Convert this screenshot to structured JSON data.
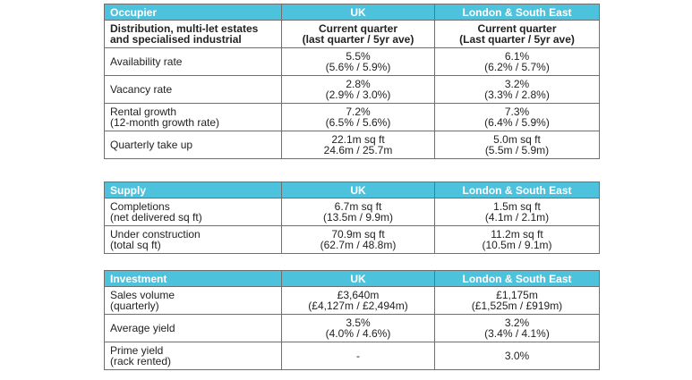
{
  "occupier": {
    "headers": [
      "Occupier",
      "UK",
      "London & South East"
    ],
    "subheader": {
      "label": [
        "Distribution, multi-let estates",
        "and specialised industrial"
      ],
      "uk": [
        "Current quarter",
        "(last quarter / 5yr ave)"
      ],
      "lse": [
        "Current quarter",
        "(Last quarter / 5yr ave)"
      ]
    },
    "rows": [
      {
        "label": [
          "Availability rate",
          ""
        ],
        "uk": [
          "5.5%",
          "(5.6% / 5.9%)"
        ],
        "lse": [
          "6.1%",
          "(6.2% / 5.7%)"
        ]
      },
      {
        "label": [
          "Vacancy rate",
          ""
        ],
        "uk": [
          "2.8%",
          "(2.9% / 3.0%)"
        ],
        "lse": [
          "3.2%",
          "(3.3% / 2.8%)"
        ]
      },
      {
        "label": [
          "Rental growth",
          "(12-month growth rate)"
        ],
        "uk": [
          "7.2%",
          "(6.5% / 5.6%)"
        ],
        "lse": [
          "7.3%",
          "(6.4% / 5.9%)"
        ]
      },
      {
        "label": [
          "Quarterly take up",
          ""
        ],
        "uk": [
          "22.1m sq ft",
          "24.6m / 25.7m"
        ],
        "lse": [
          "5.0m sq ft",
          "(5.5m / 5.9m)"
        ]
      }
    ]
  },
  "supply": {
    "headers": [
      "Supply",
      "UK",
      "London & South East"
    ],
    "rows": [
      {
        "label": [
          "Completions",
          "(net delivered sq ft)"
        ],
        "uk": [
          "6.7m sq ft",
          "(13.5m / 9.9m)"
        ],
        "lse": [
          "1.5m sq ft",
          "(4.1m / 2.1m)"
        ]
      },
      {
        "label": [
          "Under construction",
          "(total sq ft)"
        ],
        "uk": [
          "70.9m sq ft",
          "(62.7m / 48.8m)"
        ],
        "lse": [
          "11.2m sq ft",
          "(10.5m / 9.1m)"
        ]
      }
    ]
  },
  "investment": {
    "headers": [
      "Investment",
      "UK",
      "London & South East"
    ],
    "rows": [
      {
        "label": [
          "Sales volume",
          "(quarterly)"
        ],
        "uk": [
          "£3,640m",
          "(£4,127m / £2,494m)"
        ],
        "lse": [
          "£1,175m",
          "(£1,525m / £919m)"
        ]
      },
      {
        "label": [
          "Average yield",
          ""
        ],
        "uk": [
          "3.5%",
          "(4.0% / 4.6%)"
        ],
        "lse": [
          "3.2%",
          "(3.4% / 4.1%)"
        ]
      },
      {
        "label": [
          "Prime yield",
          "(rack rented)"
        ],
        "uk": [
          "-",
          ""
        ],
        "lse": [
          "3.0%",
          ""
        ]
      }
    ]
  }
}
